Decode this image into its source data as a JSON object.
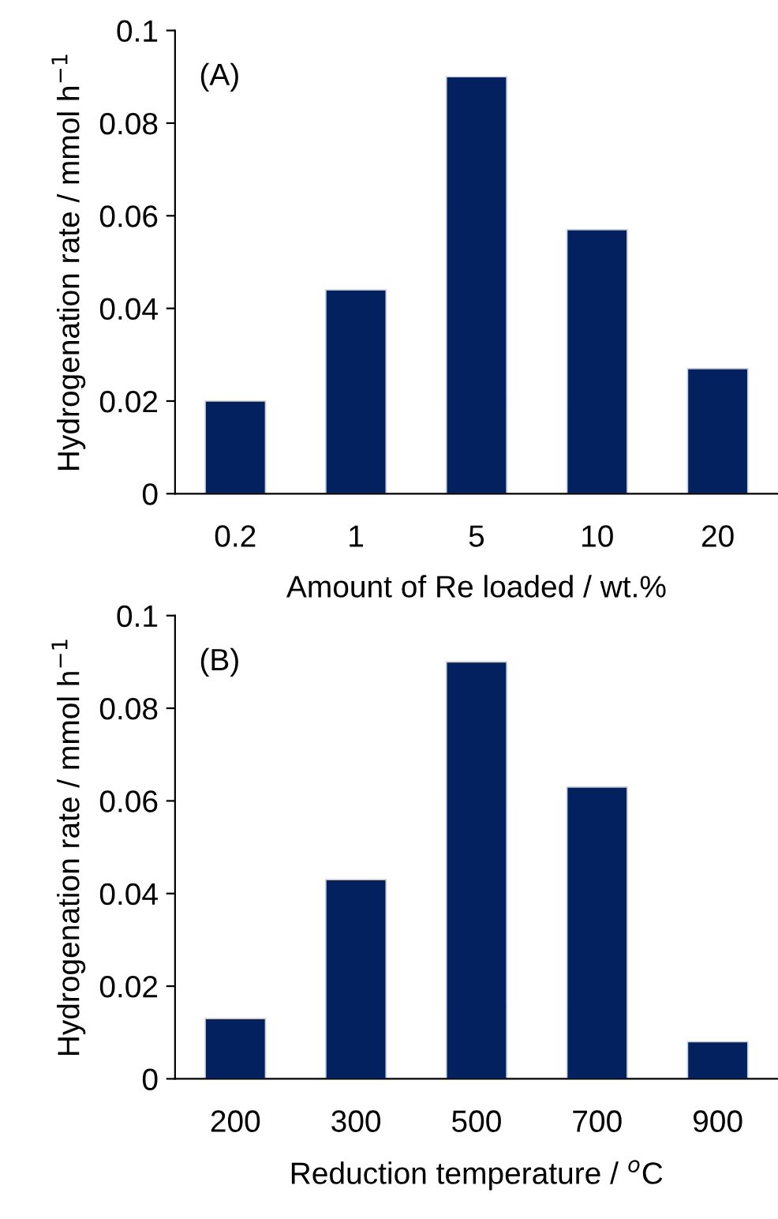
{
  "chart_data": [
    {
      "type": "bar",
      "categories": [
        "0.2",
        "1",
        "5",
        "10",
        "20"
      ],
      "values": [
        0.02,
        0.044,
        0.09,
        0.057,
        0.027
      ],
      "color": "#03215e",
      "ylim": [
        0,
        0.1
      ],
      "yticks": [
        {
          "value": 0,
          "label": "0"
        },
        0.02,
        0.04,
        0.06,
        0.08,
        0.1
      ],
      "xlabel": "Amount of Re loaded / wt.%",
      "ylabel": "Hydrogenation rate / mmol h$^{−1}$",
      "annotations": [
        "(A)"
      ],
      "grid": false,
      "legend": false
    },
    {
      "type": "bar",
      "categories": [
        "200",
        "300",
        "500",
        "700",
        "900"
      ],
      "values": [
        0.013,
        0.043,
        0.09,
        0.063,
        0.008
      ],
      "color": "#03215e",
      "ylim": [
        0,
        0.1
      ],
      "yticks": [
        {
          "value": 0,
          "label": "0"
        },
        0.02,
        0.04,
        0.06,
        0.08,
        0.1
      ],
      "xlabel": "Reduction temperature / $^{o}$C",
      "ylabel": "Hydrogenation rate / mmol h$^{−1}$",
      "annotations": [
        "(B)"
      ],
      "grid": false,
      "legend": false
    }
  ]
}
